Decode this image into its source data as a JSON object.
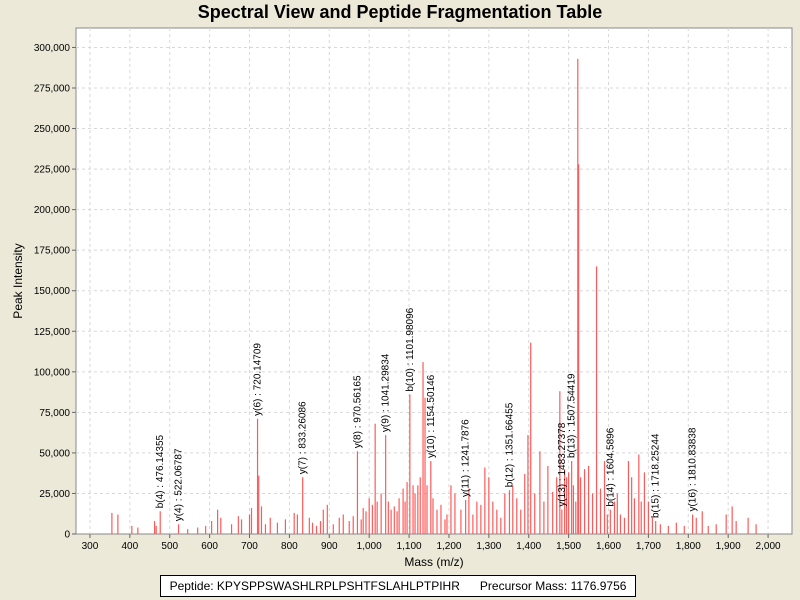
{
  "chart_data": {
    "type": "bar",
    "title": "Spectral View and Peptide Fragmentation Table",
    "xlabel": "Mass (m/z)",
    "ylabel": "Peak Intensity",
    "xlim": [
      265,
      2060
    ],
    "ylim": [
      0,
      312000
    ],
    "x_ticks": [
      300,
      400,
      500,
      600,
      700,
      800,
      900,
      1000,
      1100,
      1200,
      1300,
      1400,
      1500,
      1600,
      1700,
      1800,
      1900,
      2000
    ],
    "x_tick_labels": [
      "300",
      "400",
      "500",
      "600",
      "700",
      "800",
      "900",
      "1,000",
      "1,100",
      "1,200",
      "1,300",
      "1,400",
      "1,500",
      "1,600",
      "1,700",
      "1,800",
      "1,900",
      "2,000"
    ],
    "y_ticks": [
      0,
      25000,
      50000,
      75000,
      100000,
      125000,
      150000,
      175000,
      200000,
      225000,
      250000,
      275000,
      300000
    ],
    "y_tick_labels": [
      "0",
      "25,000",
      "50,000",
      "75,000",
      "100,000",
      "125,000",
      "150,000",
      "175,000",
      "200,000",
      "225,000",
      "250,000",
      "275,000",
      "300,000"
    ],
    "grid": true,
    "peak_color": "#ff5a5a",
    "peaks": [
      [
        355,
        13000
      ],
      [
        370,
        12000
      ],
      [
        405,
        5000
      ],
      [
        420,
        4000
      ],
      [
        462,
        8000
      ],
      [
        466,
        5000
      ],
      [
        476.14,
        14000
      ],
      [
        522.07,
        6000
      ],
      [
        545,
        3000
      ],
      [
        570,
        4000
      ],
      [
        590,
        5000
      ],
      [
        605,
        8000
      ],
      [
        620,
        15000
      ],
      [
        628,
        10000
      ],
      [
        655,
        6000
      ],
      [
        672,
        11000
      ],
      [
        680,
        9000
      ],
      [
        700,
        12000
      ],
      [
        705,
        16000
      ],
      [
        720.15,
        71000
      ],
      [
        723,
        36000
      ],
      [
        730,
        17000
      ],
      [
        740,
        6000
      ],
      [
        752,
        10000
      ],
      [
        770,
        7000
      ],
      [
        790,
        9000
      ],
      [
        812,
        13000
      ],
      [
        820,
        12000
      ],
      [
        833.26,
        35000
      ],
      [
        850,
        10000
      ],
      [
        858,
        7000
      ],
      [
        868,
        5000
      ],
      [
        878,
        8000
      ],
      [
        885,
        15000
      ],
      [
        895,
        18000
      ],
      [
        910,
        6000
      ],
      [
        925,
        10000
      ],
      [
        935,
        12000
      ],
      [
        950,
        8000
      ],
      [
        960,
        11000
      ],
      [
        970.56,
        51000
      ],
      [
        980,
        9000
      ],
      [
        985,
        16000
      ],
      [
        992,
        14000
      ],
      [
        1000,
        22000
      ],
      [
        1008,
        18000
      ],
      [
        1015,
        68000
      ],
      [
        1020,
        20000
      ],
      [
        1030,
        25000
      ],
      [
        1041.3,
        61000
      ],
      [
        1048,
        20000
      ],
      [
        1055,
        15000
      ],
      [
        1063,
        17000
      ],
      [
        1070,
        14000
      ],
      [
        1075,
        22000
      ],
      [
        1085,
        28000
      ],
      [
        1090,
        20000
      ],
      [
        1095,
        32000
      ],
      [
        1101.98,
        86000
      ],
      [
        1110,
        30000
      ],
      [
        1115,
        25000
      ],
      [
        1122,
        30000
      ],
      [
        1128,
        35000
      ],
      [
        1135,
        106000
      ],
      [
        1140,
        84000
      ],
      [
        1145,
        30000
      ],
      [
        1154.5,
        45000
      ],
      [
        1160,
        22000
      ],
      [
        1170,
        15000
      ],
      [
        1180,
        18000
      ],
      [
        1190,
        9000
      ],
      [
        1195,
        12000
      ],
      [
        1205,
        30000
      ],
      [
        1215,
        25000
      ],
      [
        1230,
        15000
      ],
      [
        1241.79,
        21000
      ],
      [
        1250,
        28000
      ],
      [
        1260,
        12000
      ],
      [
        1270,
        20000
      ],
      [
        1280,
        18000
      ],
      [
        1290,
        41000
      ],
      [
        1300,
        35000
      ],
      [
        1310,
        20000
      ],
      [
        1320,
        15000
      ],
      [
        1330,
        10000
      ],
      [
        1340,
        25000
      ],
      [
        1351.66,
        27000
      ],
      [
        1360,
        30000
      ],
      [
        1370,
        22000
      ],
      [
        1380,
        15000
      ],
      [
        1390,
        37000
      ],
      [
        1398,
        61000
      ],
      [
        1405,
        118000
      ],
      [
        1415,
        25000
      ],
      [
        1428,
        51000
      ],
      [
        1438,
        20000
      ],
      [
        1448,
        42000
      ],
      [
        1460,
        26000
      ],
      [
        1470,
        35000
      ],
      [
        1478,
        88000
      ],
      [
        1483,
        15000
      ],
      [
        1490,
        40000
      ],
      [
        1495,
        35000
      ],
      [
        1500,
        38000
      ],
      [
        1507.54,
        45000
      ],
      [
        1512,
        30000
      ],
      [
        1518,
        20000
      ],
      [
        1523,
        293000
      ],
      [
        1525,
        228000
      ],
      [
        1530,
        35000
      ],
      [
        1540,
        40000
      ],
      [
        1550,
        42000
      ],
      [
        1560,
        25000
      ],
      [
        1570,
        165000
      ],
      [
        1580,
        28000
      ],
      [
        1590,
        45000
      ],
      [
        1597,
        12000
      ],
      [
        1604.59,
        15000
      ],
      [
        1615,
        20000
      ],
      [
        1622,
        25000
      ],
      [
        1630,
        12000
      ],
      [
        1640,
        10000
      ],
      [
        1650,
        45000
      ],
      [
        1658,
        35000
      ],
      [
        1665,
        22000
      ],
      [
        1676,
        49000
      ],
      [
        1682,
        20000
      ],
      [
        1690,
        38000
      ],
      [
        1700,
        20000
      ],
      [
        1710,
        10000
      ],
      [
        1718.25,
        8000
      ],
      [
        1730,
        6000
      ],
      [
        1750,
        5000
      ],
      [
        1770,
        7000
      ],
      [
        1790,
        5000
      ],
      [
        1810.84,
        12000
      ],
      [
        1820,
        10000
      ],
      [
        1835,
        14000
      ],
      [
        1850,
        5000
      ],
      [
        1870,
        6000
      ],
      [
        1895,
        12000
      ],
      [
        1910,
        17000
      ],
      [
        1920,
        8000
      ],
      [
        1950,
        10000
      ],
      [
        1970,
        6000
      ]
    ],
    "annotations": [
      {
        "label": "b(4) : 476.14355",
        "mass": 476.14355,
        "intensity": 14000
      },
      {
        "label": "y(4) : 522.06787",
        "mass": 522.06787,
        "intensity": 6000
      },
      {
        "label": "y(6) : 720.14709",
        "mass": 720.14709,
        "intensity": 71000
      },
      {
        "label": "y(7) : 833.26086",
        "mass": 833.26086,
        "intensity": 35000
      },
      {
        "label": "y(8) : 970.56165",
        "mass": 970.56165,
        "intensity": 51000
      },
      {
        "label": "y(9) : 1041.29834",
        "mass": 1041.29834,
        "intensity": 61000
      },
      {
        "label": "b(10) : 1101.98096",
        "mass": 1101.98096,
        "intensity": 86000
      },
      {
        "label": "y(10) : 1154.50146",
        "mass": 1154.50146,
        "intensity": 45000
      },
      {
        "label": "y(11) : 1241.7876",
        "mass": 1241.7876,
        "intensity": 21000
      },
      {
        "label": "b(12) : 1351.66455",
        "mass": 1351.66455,
        "intensity": 27000
      },
      {
        "label": "y(13) : 1483.27378",
        "mass": 1483.27378,
        "intensity": 15000
      },
      {
        "label": "b(13) : 1507.54419",
        "mass": 1507.54419,
        "intensity": 45000
      },
      {
        "label": "b(14) : 1604.5896",
        "mass": 1604.5896,
        "intensity": 15000
      },
      {
        "label": "b(15) : 1718.25244",
        "mass": 1718.25244,
        "intensity": 8000
      },
      {
        "label": "y(16) : 1810.83838",
        "mass": 1810.83838,
        "intensity": 12000
      }
    ]
  },
  "footer": {
    "peptide": "Peptide: KPYSPPSWASHLRPLPSHTFSLAHLPTPIHR",
    "precursor": "Precursor Mass: 1176.9756"
  }
}
